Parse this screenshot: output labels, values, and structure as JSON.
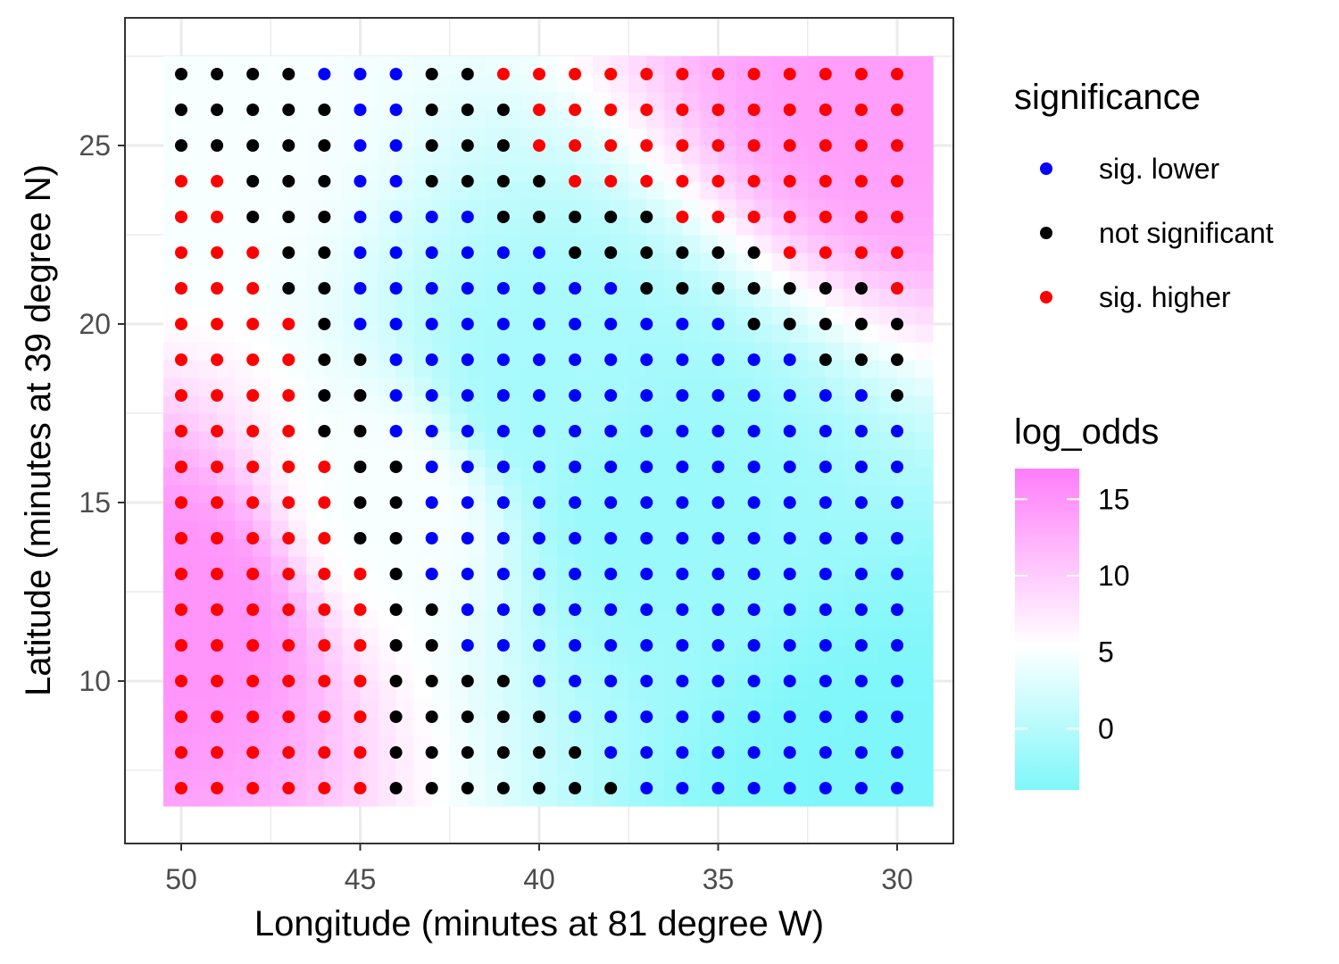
{
  "chart_data": {
    "type": "heatmap",
    "xlabel": "Longitude (minutes at 81 degree W)",
    "ylabel": "Latitude (minutes at 39 degree N)",
    "x_reversed": true,
    "xlim": [
      50.5,
      29.5
    ],
    "ylim": [
      6.5,
      27.5
    ],
    "x_ticks": [
      50,
      45,
      40,
      35,
      30
    ],
    "y_ticks": [
      10,
      15,
      20,
      25
    ],
    "grid": true,
    "legend_placement": "right",
    "x_values": [
      50,
      49,
      48,
      47,
      46,
      45,
      44,
      43,
      42,
      41,
      40,
      39,
      38,
      37,
      36,
      35,
      34,
      33,
      32,
      31,
      30
    ],
    "y_values": [
      27,
      26,
      25,
      24,
      23,
      22,
      21,
      20,
      19,
      18,
      17,
      16,
      15,
      14,
      13,
      12,
      11,
      10,
      9,
      8,
      7
    ],
    "significance_grid_note_codes": "H = sig. higher, N = not significant, L = sig. lower; rows from latitude 27 down to 7, columns from longitude 50 to 30",
    "significance_grid": [
      "NNNNLLLNNHHHHHHHHHHHH",
      "NNNNNLLNNNHHHHHHHHHHH",
      "NNNNNLLNNNHHHHHHHHHHH",
      "HHNNNLLNNNNHHHHHHHHHH",
      "HHNNNLLLLNNNNNHHHHHHH",
      "HHHNNLLLLLLNNNNNNHHHH",
      "HHHNNLLLLLLLLNNNNNNNH",
      "HHHHNLLLLLLLLLLLNNNNN",
      "HHHHNNLLLLLLLLLLLLNNN",
      "HHHHNNLLLLLLLLLLLLLLN",
      "HHHHNNLLLLLLLLLLLLLLL",
      "HHHHHNNLLLLLLLLLLLLLL",
      "HHHHHNNLLLLLLLLLLLLLL",
      "HHHHHNNLLLLLLLLLLLLLL",
      "HHHHHHNLLLLLLLLLLLLLL",
      "HHHHHHNNLLLLLLLLLLLLL",
      "HHHHHHNNLLLLLLLLLLLLL",
      "HHHHHHNNNNLLLLLLLLLLL",
      "HHHHHHNNNNNLLLLLLLLLL",
      "HHHHHHNNNNNNLLLLLLLLL",
      "HHHHHHNNNNNNNLLLLLLLL"
    ],
    "significance_legend": {
      "title": "significance",
      "entries": [
        {
          "code": "L",
          "label": "sig. lower",
          "color": "#0000ff"
        },
        {
          "code": "N",
          "label": "not significant",
          "color": "#000000"
        },
        {
          "code": "H",
          "label": "sig. higher",
          "color": "#ff0000"
        }
      ]
    },
    "log_odds_legend": {
      "title": "log_odds",
      "ticks": [
        15,
        10,
        5,
        0
      ],
      "range": [
        -4,
        17
      ],
      "low_color": "#7ff7fa",
      "mid_color": "#ffffff",
      "mid_value": 5.5,
      "high_color": "#ff7dfa"
    },
    "log_odds_surface": {
      "description_points": [
        {
          "x": 50,
          "y": 12,
          "value": 15
        },
        {
          "x": 50,
          "y": 25,
          "value": 5
        },
        {
          "x": 30,
          "y": 27,
          "value": 14
        },
        {
          "x": 37,
          "y": 15,
          "value": -2
        },
        {
          "x": 40,
          "y": 18,
          "value": -1
        },
        {
          "x": 30,
          "y": 7,
          "value": -4
        },
        {
          "x": 44,
          "y": 15,
          "value": 5
        }
      ]
    }
  }
}
